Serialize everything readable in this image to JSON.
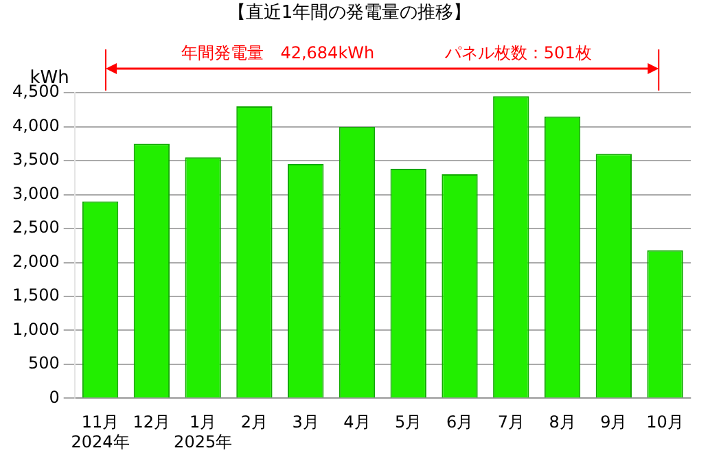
{
  "chart_data": {
    "type": "bar",
    "title": "【直近1年間の発電量の推移】",
    "ylabel": "kWh",
    "categories": [
      "11月\n2024年",
      "12月",
      "1月\n2025年",
      "2月",
      "3月",
      "4月",
      "5月",
      "6月",
      "7月",
      "8月",
      "9月",
      "10月"
    ],
    "values": [
      2900,
      3750,
      3550,
      4300,
      3450,
      4000,
      3380,
      3300,
      4450,
      4150,
      3600,
      2180
    ],
    "color": "#22ee00",
    "ylim": [
      0,
      4500
    ],
    "yticks": [
      {
        "value": 0,
        "label": "0"
      },
      {
        "value": 500,
        "label": "500"
      },
      {
        "value": 1000,
        "label": "1,000"
      },
      {
        "value": 1500,
        "label": "1,500"
      },
      {
        "value": 2000,
        "label": "2,000"
      },
      {
        "value": 2500,
        "label": "2,500"
      },
      {
        "value": 3000,
        "label": "3,000"
      },
      {
        "value": 3500,
        "label": "3,500"
      },
      {
        "value": 4000,
        "label": "4,000"
      },
      {
        "value": 4500,
        "label": "4,500"
      }
    ],
    "grid": true,
    "legend": false,
    "annotations": [
      "年間発電量　42,684kWh",
      "パネル枚数：501枚"
    ]
  }
}
